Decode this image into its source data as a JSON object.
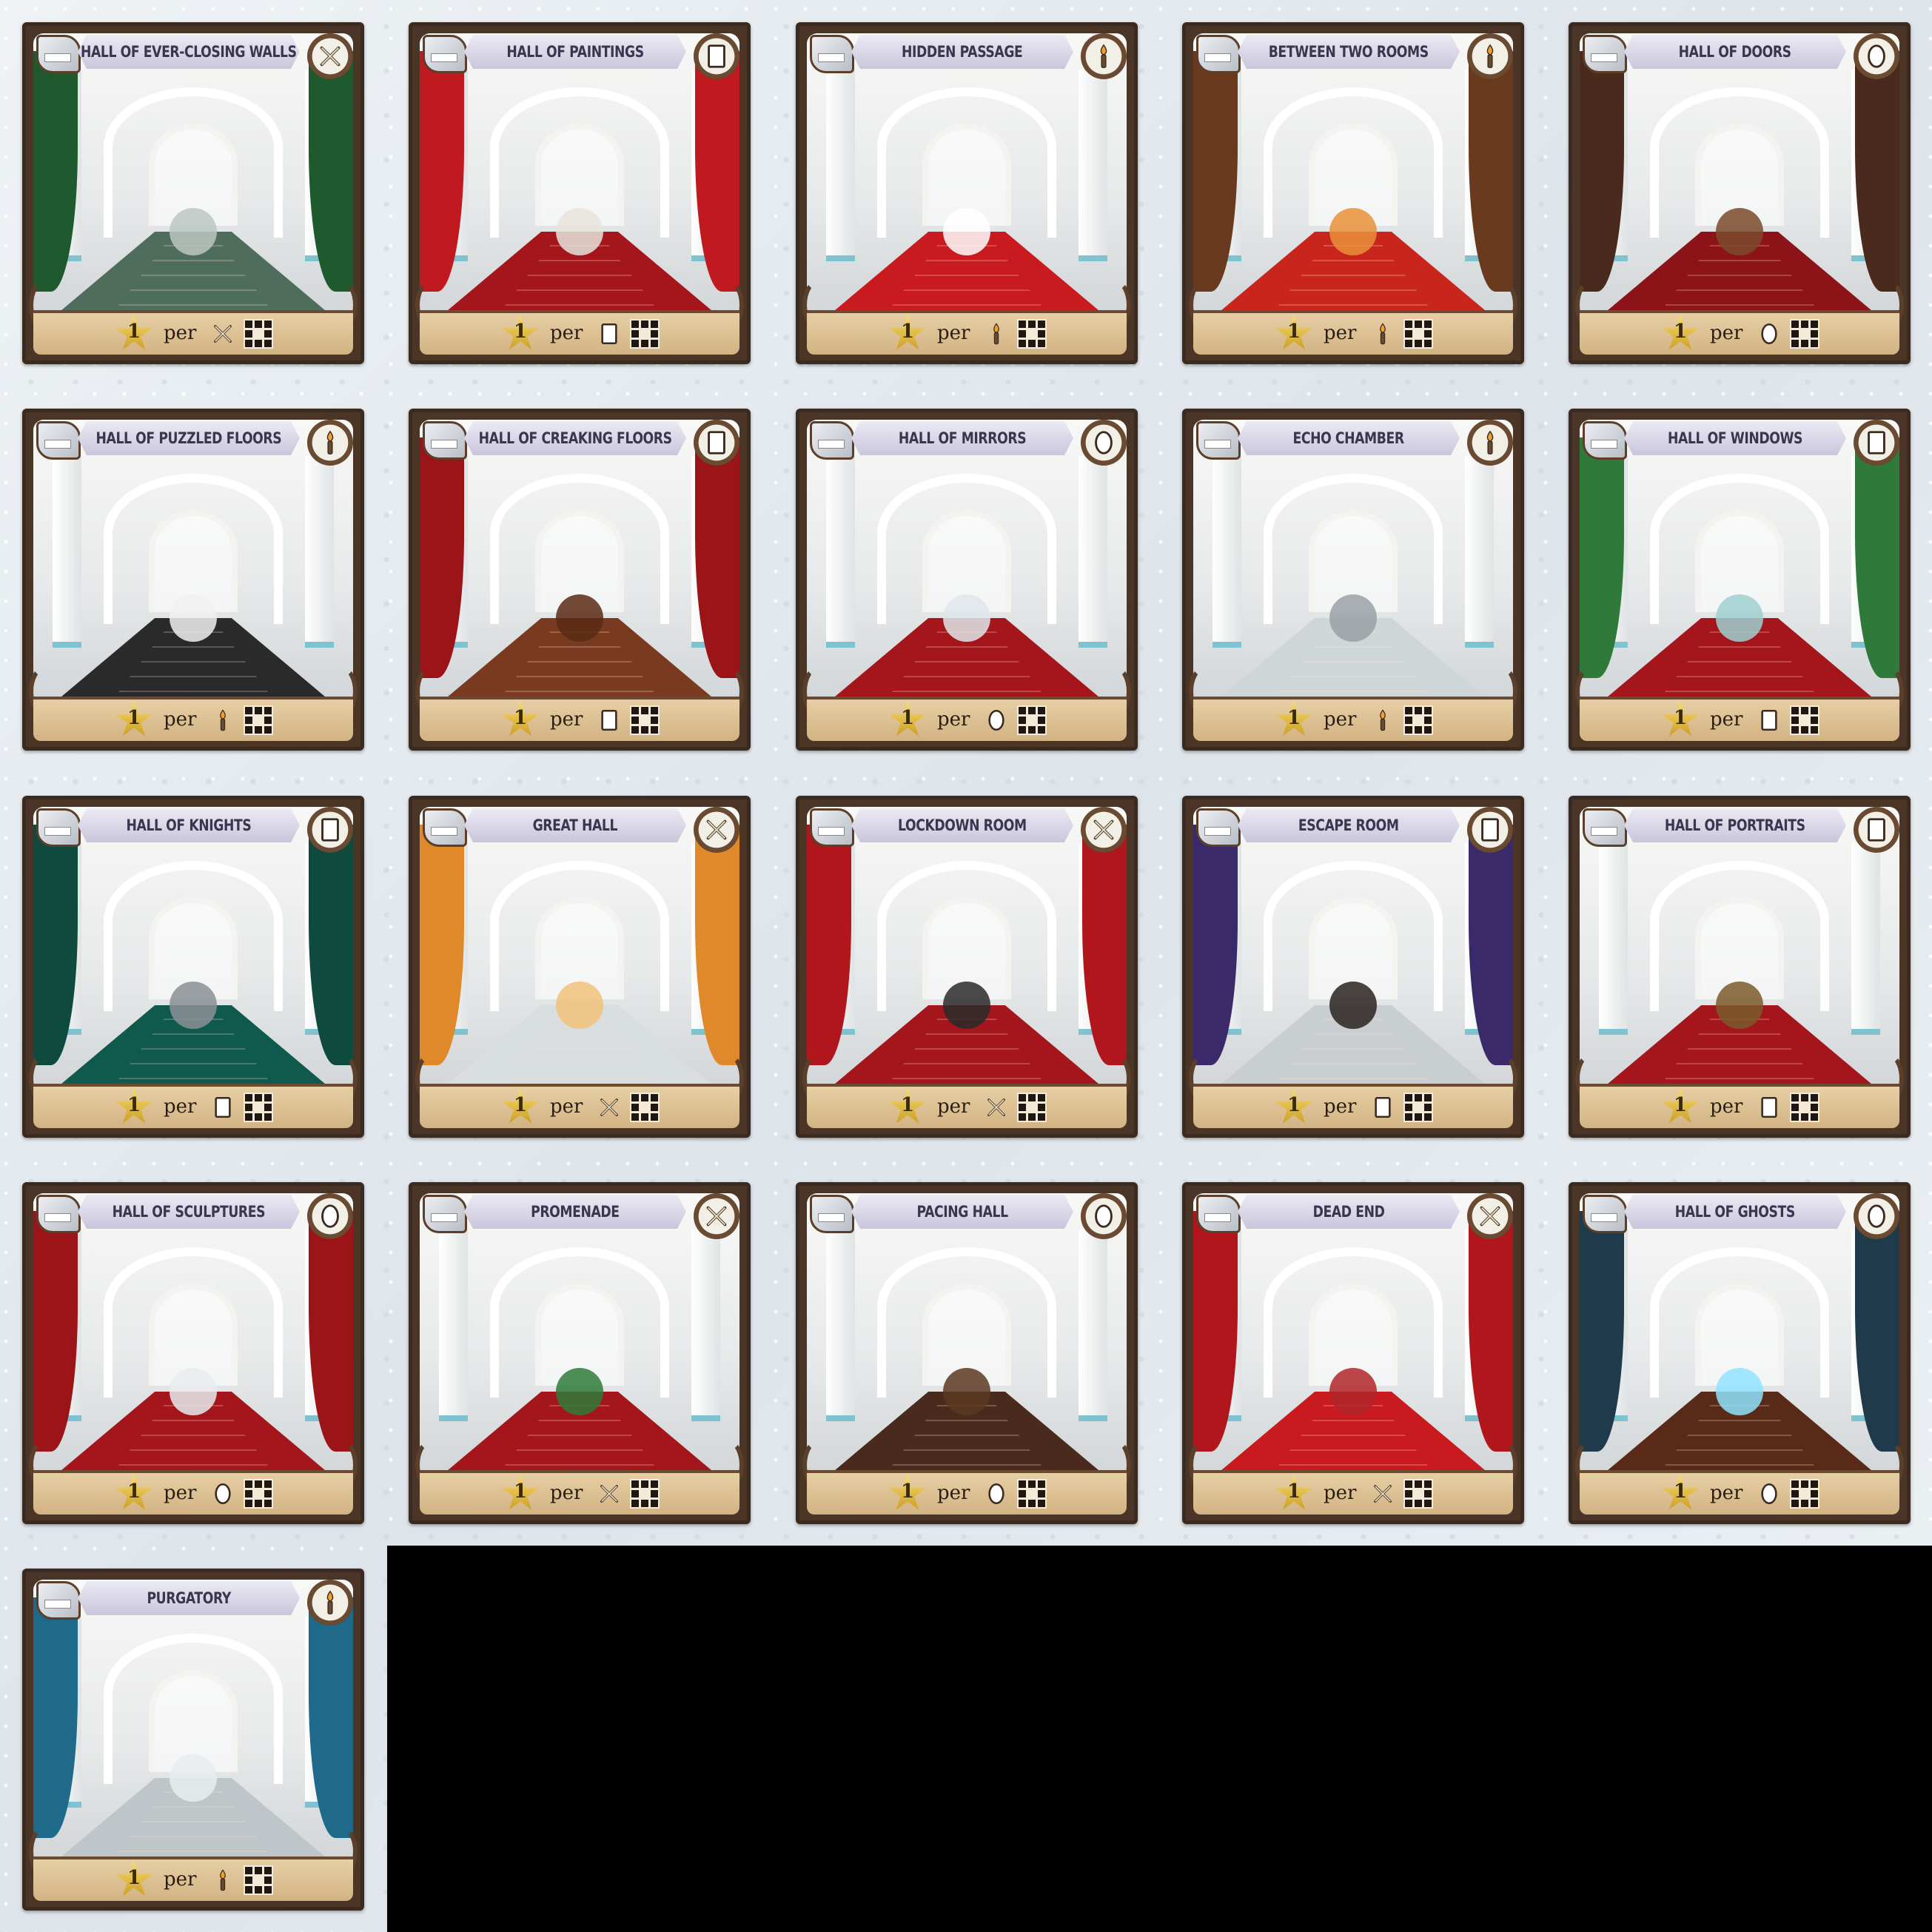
{
  "sheet": {
    "per_label": "per",
    "cards": [
      {
        "title": "HALL OF EVER-CLOSING WALLS",
        "icon": "swords-icon",
        "value": "1",
        "floor": "#4f6d5c",
        "drape": "#1f5a2e",
        "prop": "#bcc7c2",
        "grid_holes": [
          4
        ]
      },
      {
        "title": "HALL OF PAINTINGS",
        "icon": "card-icon",
        "value": "1",
        "floor": "#a4161b",
        "drape": "#c0191f",
        "prop": "#e8e4dc",
        "grid_holes": [
          4
        ]
      },
      {
        "title": "HIDDEN PASSAGE",
        "icon": "torch-icon",
        "value": "1",
        "floor": "#c81a1f",
        "drape": "",
        "prop": "#ffffff",
        "grid_holes": [
          4
        ]
      },
      {
        "title": "BETWEEN TWO ROOMS",
        "icon": "torch-icon",
        "value": "1",
        "floor": "#c8251c",
        "drape": "#6a3a1f",
        "prop": "#e9913a",
        "grid_holes": [
          4
        ]
      },
      {
        "title": "HALL OF DOORS",
        "icon": "ghost-icon",
        "value": "1",
        "floor": "#8c1418",
        "drape": "#4a2a1c",
        "prop": "#7a4a2a",
        "grid_holes": [
          4
        ]
      },
      {
        "title": "HALL OF PUZZLED FLOORS",
        "icon": "torch-icon",
        "value": "1",
        "floor": "#2a2a2a",
        "drape": "",
        "prop": "#f0f0f0",
        "grid_holes": [
          4
        ]
      },
      {
        "title": "HALL OF CREAKING FLOORS",
        "icon": "card-icon",
        "value": "1",
        "floor": "#7a3a1f",
        "drape": "#9a1418",
        "prop": "#5a2a14",
        "grid_holes": [
          4
        ]
      },
      {
        "title": "HALL OF MIRRORS",
        "icon": "ghost-icon",
        "value": "1",
        "floor": "#a4161b",
        "drape": "",
        "prop": "#dfe6ea",
        "grid_holes": [
          4
        ]
      },
      {
        "title": "ECHO CHAMBER",
        "icon": "torch-icon",
        "value": "1",
        "floor": "#cfd6d8",
        "drape": "",
        "prop": "#9aa1a6",
        "grid_holes": [
          4
        ]
      },
      {
        "title": "HALL OF WINDOWS",
        "icon": "card-icon",
        "value": "1",
        "floor": "#a4161b",
        "drape": "#2f7a3a",
        "prop": "#9fd0cf",
        "grid_holes": [
          4
        ]
      },
      {
        "title": "HALL OF KNIGHTS",
        "icon": "card-icon",
        "value": "1",
        "floor": "#0f5a4c",
        "drape": "#0f4a3e",
        "prop": "#8a8f95",
        "grid_holes": [
          4
        ]
      },
      {
        "title": "GREAT HALL",
        "icon": "swords-icon",
        "value": "1",
        "floor": "#d8dde0",
        "drape": "#e0892a",
        "prop": "#f2c27a",
        "grid_holes": [
          4
        ]
      },
      {
        "title": "LOCKDOWN ROOM",
        "icon": "swords-icon",
        "value": "1",
        "floor": "#a4161b",
        "drape": "#b0161b",
        "prop": "#2a2a2a",
        "grid_holes": [
          4
        ]
      },
      {
        "title": "ESCAPE ROOM",
        "icon": "card-icon",
        "value": "1",
        "floor": "#c9ced0",
        "drape": "#3b2a6a",
        "prop": "#2a2320",
        "grid_holes": [
          4
        ]
      },
      {
        "title": "HALL OF PORTRAITS",
        "icon": "card-icon",
        "value": "1",
        "floor": "#a4161b",
        "drape": "",
        "prop": "#7a5a2a",
        "grid_holes": [
          4
        ]
      },
      {
        "title": "HALL OF SCULPTURES",
        "icon": "ghost-icon",
        "value": "1",
        "floor": "#a4161b",
        "drape": "#9a1418",
        "prop": "#e8ecee",
        "grid_holes": [
          4
        ]
      },
      {
        "title": "PROMENADE",
        "icon": "swords-icon",
        "value": "1",
        "floor": "#a4161b",
        "drape": "",
        "prop": "#2f7a3a",
        "grid_holes": [
          4
        ]
      },
      {
        "title": "PACING HALL",
        "icon": "ghost-icon",
        "value": "1",
        "floor": "#4a2a1c",
        "drape": "",
        "prop": "#5a3a22",
        "grid_holes": [
          4
        ]
      },
      {
        "title": "DEAD END",
        "icon": "swords-icon",
        "value": "1",
        "floor": "#c81a1f",
        "drape": "#b0161b",
        "prop": "#b0262a",
        "grid_holes": [
          4
        ]
      },
      {
        "title": "HALL OF GHOSTS",
        "icon": "ghost-icon",
        "value": "1",
        "floor": "#5a2a18",
        "drape": "#1f3a4a",
        "prop": "#8fe3ff",
        "grid_holes": [
          4
        ]
      },
      {
        "title": "PURGATORY",
        "icon": "torch-icon",
        "value": "1",
        "floor": "#bfc6c9",
        "drape": "#1f6a8a",
        "prop": "#e8ecee",
        "grid_holes": [
          4
        ]
      }
    ]
  }
}
